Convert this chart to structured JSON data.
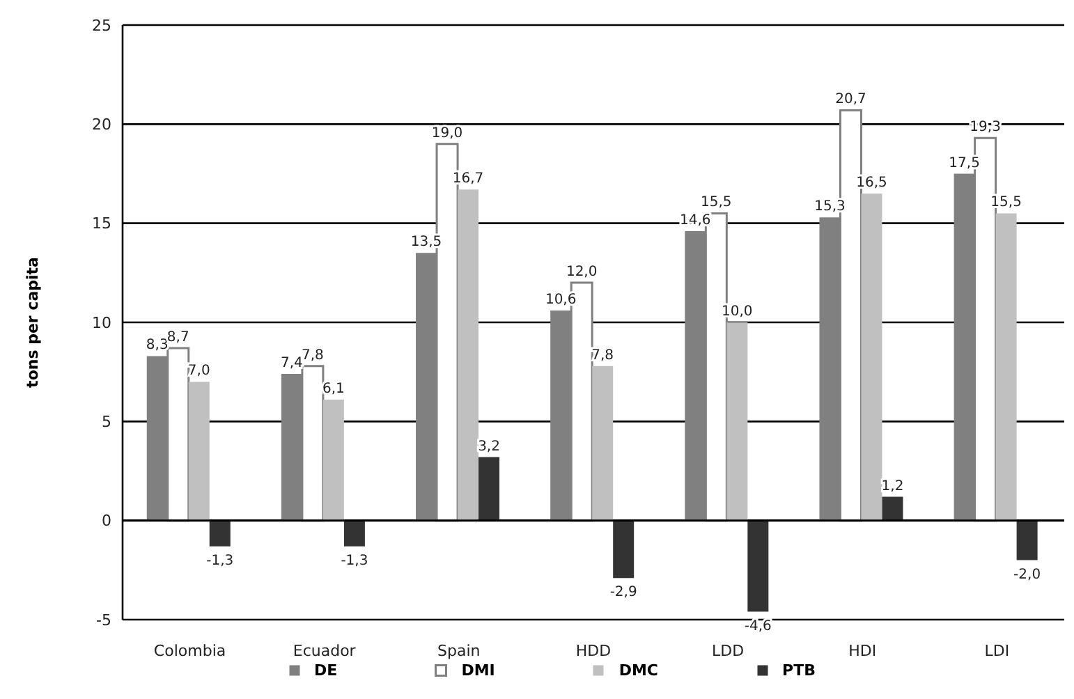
{
  "chart_data": {
    "type": "bar",
    "ylabel": "tons per capita",
    "categories": [
      "Colombia",
      "Ecuador",
      "Spain",
      "HDD",
      "LDD",
      "HDI",
      "LDI"
    ],
    "series": [
      {
        "name": "DE",
        "color": "#808080",
        "values": [
          8.3,
          7.4,
          13.5,
          10.6,
          14.6,
          15.3,
          17.5
        ],
        "value_labels": [
          "8,3",
          "7,4",
          "13,5",
          "10,6",
          "14,6",
          "15,3",
          "17,5"
        ]
      },
      {
        "name": "DMI",
        "color": "#ffffff",
        "values": [
          8.7,
          7.8,
          19.0,
          12.0,
          15.5,
          20.7,
          19.3
        ],
        "value_labels": [
          "8,7",
          "7,8",
          "19,0",
          "12,0",
          "15,5",
          "20,7",
          "19,3"
        ]
      },
      {
        "name": "DMC",
        "color": "#c0c0c0",
        "values": [
          7.0,
          6.1,
          16.7,
          7.8,
          10.0,
          16.5,
          15.5
        ],
        "value_labels": [
          "7,0",
          "6,1",
          "16,7",
          "7,8",
          "10,0",
          "16,5",
          "15,5"
        ]
      },
      {
        "name": "PTB",
        "color": "#333333",
        "values": [
          -1.3,
          -1.3,
          3.2,
          -2.9,
          -4.6,
          1.2,
          -2.0
        ],
        "value_labels": [
          "-1,3",
          "-1,3",
          "3,2",
          "-2,9",
          "-4,6",
          "1,2",
          "-2,0"
        ]
      }
    ],
    "ylim": [
      -5,
      25
    ],
    "yticks": [
      -5,
      0,
      5,
      10,
      15,
      20,
      25
    ],
    "grid": "y",
    "legend": "bottom"
  }
}
